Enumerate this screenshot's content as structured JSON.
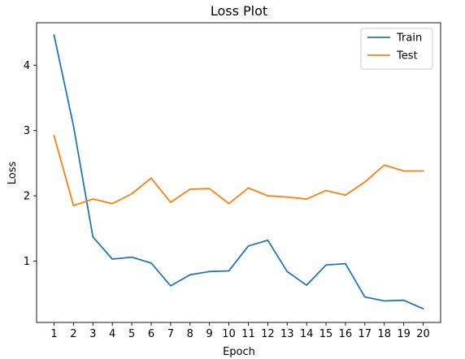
{
  "chart_data": {
    "type": "line",
    "title": "Loss Plot",
    "xlabel": "Epoch",
    "ylabel": "Loss",
    "x": [
      1,
      2,
      3,
      4,
      5,
      6,
      7,
      8,
      9,
      10,
      11,
      12,
      13,
      14,
      15,
      16,
      17,
      18,
      19,
      20
    ],
    "xticks": [
      "1",
      "2",
      "3",
      "4",
      "5",
      "6",
      "7",
      "8",
      "9",
      "10",
      "11",
      "12",
      "13",
      "14",
      "15",
      "16",
      "17",
      "18",
      "19",
      "20"
    ],
    "xlim": [
      0.1,
      20.9
    ],
    "yticks": [
      1,
      2,
      3,
      4
    ],
    "ylim": [
      0.06,
      4.65
    ],
    "grid": false,
    "legend_position": "top-right",
    "series": [
      {
        "name": "Train",
        "color": "#1f77b4",
        "values": [
          4.46,
          3.07,
          1.37,
          1.03,
          1.06,
          0.97,
          0.62,
          0.79,
          0.84,
          0.85,
          1.23,
          1.32,
          0.84,
          0.63,
          0.94,
          0.96,
          0.45,
          0.39,
          0.4,
          0.27
        ]
      },
      {
        "name": "Test",
        "color": "#ff7f0e",
        "values": [
          2.92,
          1.85,
          1.95,
          1.88,
          2.03,
          2.27,
          1.9,
          2.1,
          2.11,
          1.88,
          2.12,
          2.0,
          1.98,
          1.95,
          2.08,
          2.01,
          2.21,
          2.47,
          2.38,
          2.38
        ]
      }
    ]
  }
}
